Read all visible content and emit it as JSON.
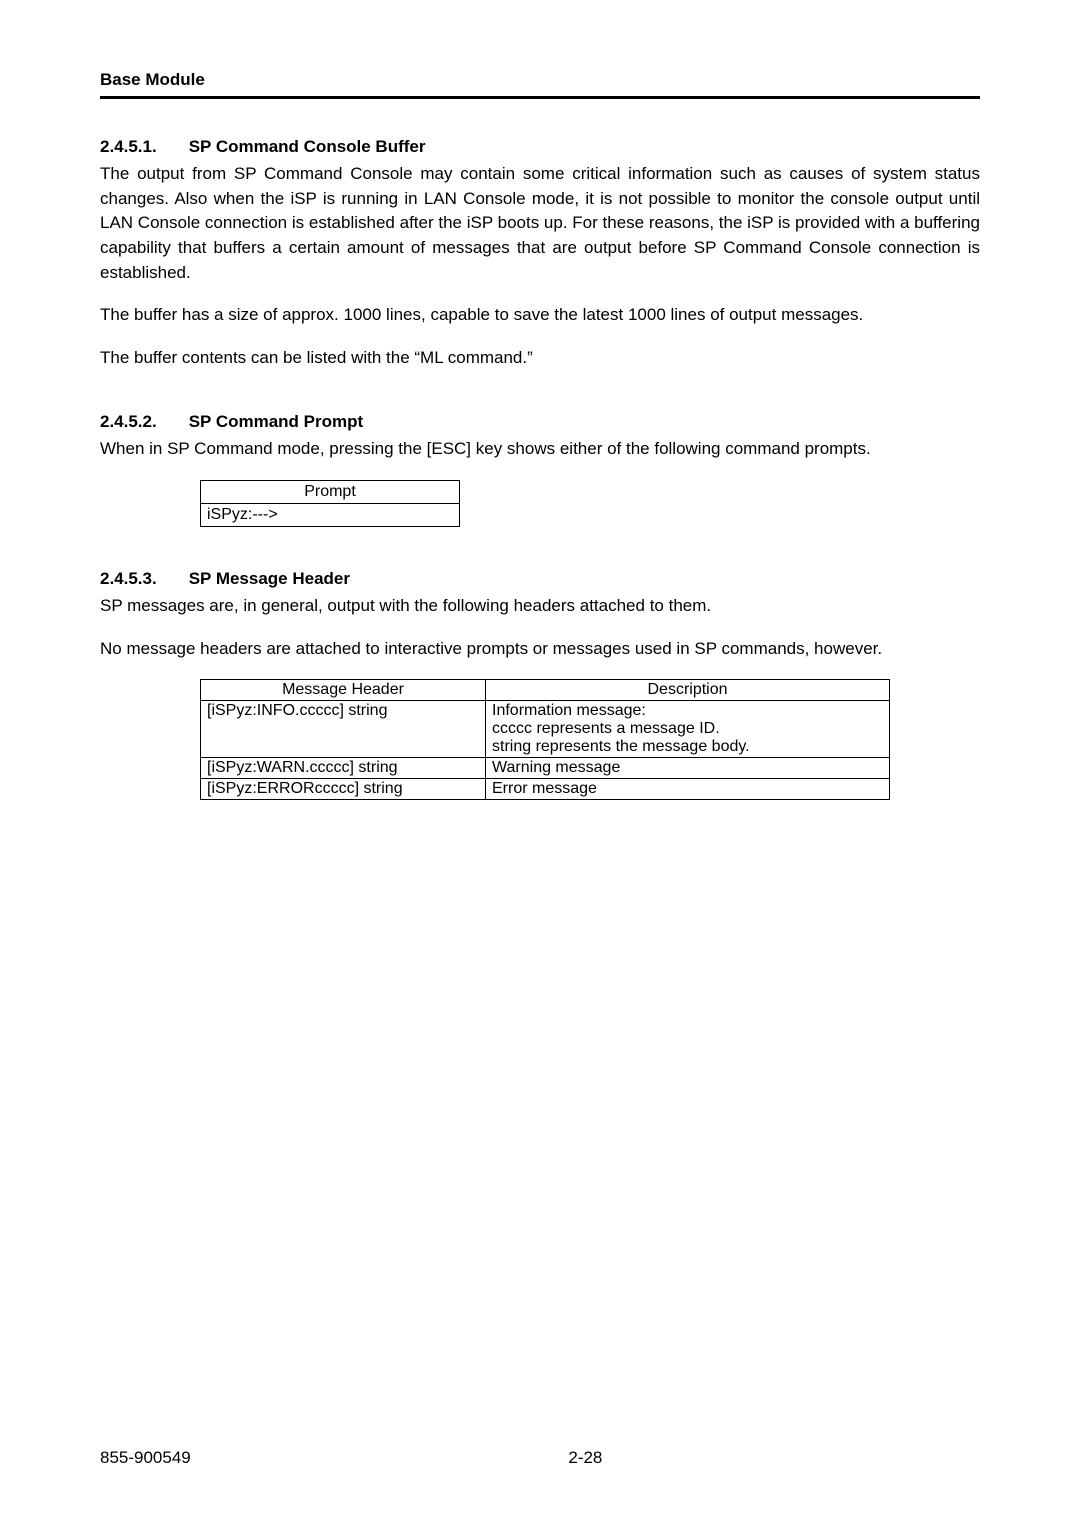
{
  "header": {
    "title": "Base Module"
  },
  "sections": {
    "s1": {
      "number": "2.4.5.1.",
      "title": "SP Command Console Buffer",
      "p1": "The output from SP Command Console may contain some critical information such as causes of system status changes. Also when the iSP is running in LAN Console mode, it is not possible to monitor the console output until LAN Console connection is established after the iSP boots up. For these reasons, the iSP is provided with a buffering capability that buffers a certain amount of messages that are output before SP Command Console connection is established.",
      "p2": "The buffer has a size of approx. 1000 lines, capable to save the latest 1000 lines of output messages.",
      "p3": "The buffer contents can be listed with the “ML command.”"
    },
    "s2": {
      "number": "2.4.5.2.",
      "title": "SP Command Prompt",
      "p1": "When in SP Command mode, pressing the [ESC] key shows either of the following command prompts.",
      "prompt_table": {
        "header": "Prompt",
        "row1": "iSPyz:--->"
      }
    },
    "s3": {
      "number": "2.4.5.3.",
      "title": "SP Message Header",
      "p1": "SP messages are, in general, output with the following headers attached to them.",
      "p2": "No message headers are attached to interactive prompts or messages used in SP commands, however.",
      "header_table": {
        "col1_header": "Message Header",
        "col2_header": "Description",
        "rows": [
          {
            "header": "[iSPyz:INFO.ccccc] string",
            "desc": "Information message:\nccccc represents a message ID.\nstring represents the message body."
          },
          {
            "header": "[iSPyz:WARN.ccccc] string",
            "desc": "Warning message"
          },
          {
            "header": "[iSPyz:ERRORccccc] string",
            "desc": "Error message"
          }
        ]
      }
    }
  },
  "footer": {
    "left": "855-900549",
    "center": "2-28"
  }
}
